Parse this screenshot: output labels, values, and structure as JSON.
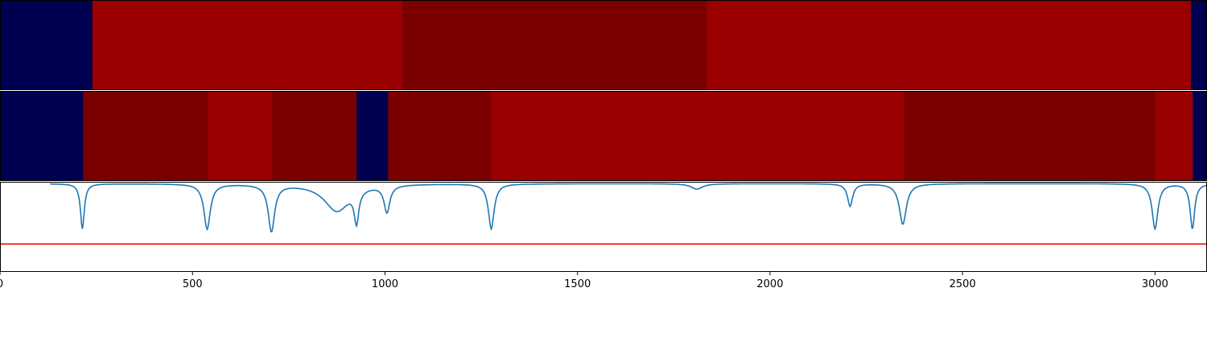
{
  "chart_data": {
    "type": "heatmap",
    "title": "",
    "xlabel": "",
    "ylabel": "",
    "xlim": [
      0,
      3135
    ],
    "xticks": [
      0,
      500,
      1000,
      1500,
      2000,
      2500,
      3000
    ],
    "tick_labels": [
      "0",
      "500",
      "1000",
      "1500",
      "2000",
      "2500",
      "3000"
    ],
    "colors": {
      "blue": "#000050",
      "red": "#9a0000",
      "dark_red": "#7a0000",
      "line": "#1f77b4",
      "threshold": "#ff0000",
      "axes": "#000000",
      "separator": "#ffffff"
    },
    "segment_rows": [
      {
        "name": "",
        "segments": [
          {
            "start": 0,
            "end": 240,
            "class": "blue"
          },
          {
            "start": 240,
            "end": 1045,
            "class": "red"
          },
          {
            "start": 1045,
            "end": 1835,
            "class": "dark_red"
          },
          {
            "start": 1835,
            "end": 3093,
            "class": "red"
          },
          {
            "start": 3093,
            "end": 3135,
            "class": "blue"
          }
        ]
      },
      {
        "name": "",
        "segments": [
          {
            "start": 0,
            "end": 216,
            "class": "blue"
          },
          {
            "start": 216,
            "end": 540,
            "class": "dark_red"
          },
          {
            "start": 540,
            "end": 707,
            "class": "red"
          },
          {
            "start": 707,
            "end": 926,
            "class": "dark_red"
          },
          {
            "start": 926,
            "end": 1008,
            "class": "blue"
          },
          {
            "start": 1008,
            "end": 1276,
            "class": "dark_red"
          },
          {
            "start": 1276,
            "end": 2348,
            "class": "red"
          },
          {
            "start": 2348,
            "end": 3000,
            "class": "dark_red"
          },
          {
            "start": 3000,
            "end": 3098,
            "class": "red"
          },
          {
            "start": 3098,
            "end": 3135,
            "class": "blue"
          }
        ]
      }
    ],
    "signal": {
      "ylim": [
        0,
        1
      ],
      "baseline": 0.98,
      "threshold": 0.31,
      "dips": [
        {
          "x": 214,
          "depth": 0.5,
          "width": 6
        },
        {
          "x": 538,
          "depth": 0.5,
          "width": 10
        },
        {
          "x": 705,
          "depth": 0.52,
          "width": 10
        },
        {
          "x": 875,
          "depth": 0.3,
          "width": 40
        },
        {
          "x": 926,
          "depth": 0.35,
          "width": 7
        },
        {
          "x": 1005,
          "depth": 0.3,
          "width": 9
        },
        {
          "x": 1276,
          "depth": 0.5,
          "width": 9
        },
        {
          "x": 1810,
          "depth": 0.06,
          "width": 18
        },
        {
          "x": 2208,
          "depth": 0.25,
          "width": 8
        },
        {
          "x": 2345,
          "depth": 0.45,
          "width": 11
        },
        {
          "x": 3000,
          "depth": 0.5,
          "width": 9
        },
        {
          "x": 3097,
          "depth": 0.5,
          "width": 7
        }
      ]
    }
  }
}
